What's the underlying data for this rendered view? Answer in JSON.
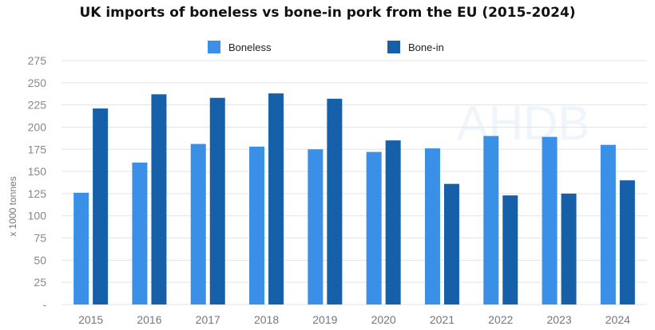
{
  "chart_data": {
    "type": "bar",
    "title": "UK imports of boneless vs bone-in pork from the EU (2015-2024)",
    "xlabel": "",
    "ylabel": "x 1000 tonnes",
    "ylim": [
      0,
      275
    ],
    "yticks": [
      0,
      25,
      50,
      75,
      100,
      125,
      150,
      175,
      200,
      225,
      250,
      275
    ],
    "ytick_labels": [
      "-",
      "25",
      "50",
      "75",
      "100",
      "125",
      "150",
      "175",
      "200",
      "225",
      "250",
      "275"
    ],
    "grid": true,
    "legend_position": "top",
    "categories": [
      "2015",
      "2016",
      "2017",
      "2018",
      "2019",
      "2020",
      "2021",
      "2022",
      "2023",
      "2024"
    ],
    "series": [
      {
        "name": "Boneless",
        "color": "#3a8fe6",
        "values": [
          126,
          160,
          181,
          178,
          175,
          172,
          176,
          190,
          189,
          180
        ]
      },
      {
        "name": "Bone-in",
        "color": "#1660aa",
        "values": [
          221,
          237,
          233,
          238,
          232,
          185,
          136,
          123,
          125,
          140
        ]
      }
    ],
    "watermark": "AHDB"
  }
}
